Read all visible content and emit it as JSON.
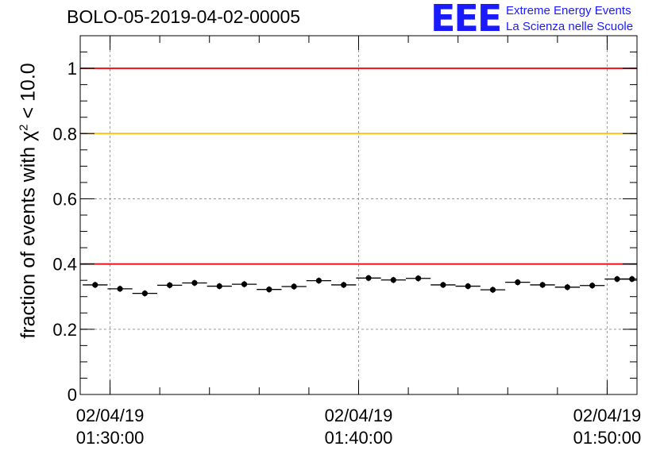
{
  "header": {
    "title": "BOLO-05-2019-04-02-00005",
    "logo_mark": "EEE",
    "logo_line1": "Extreme Energy Events",
    "logo_line2": "La Scienza nelle Scuole"
  },
  "chart_data": {
    "type": "scatter",
    "title": "BOLO-05-2019-04-02-00005",
    "xlabel": "",
    "ylabel_prefix": "fraction of events with ",
    "ylabel_symbol": "χ",
    "ylabel_sup": "2",
    "ylabel_suffix": " < 10.0",
    "x_range_minutes": [
      28.8,
      51.2
    ],
    "ylim": [
      0,
      1.1
    ],
    "yticks": [
      0,
      0.2,
      0.4,
      0.6,
      0.8,
      1
    ],
    "ytick_labels": [
      "0",
      "0.2",
      "0.4",
      "0.6",
      "0.8",
      "1"
    ],
    "xticks": [
      {
        "minute": 30,
        "date": "02/04/19",
        "time": "01:30:00"
      },
      {
        "minute": 40,
        "date": "02/04/19",
        "time": "01:40:00"
      },
      {
        "minute": 50,
        "date": "02/04/19",
        "time": "01:50:00"
      }
    ],
    "bin_width_minutes": 1,
    "series": [
      {
        "x": [
          29.4,
          30.4,
          31.4,
          32.4,
          33.4,
          34.4,
          35.4,
          36.4,
          37.4,
          38.4,
          39.4,
          40.4,
          41.4,
          42.4,
          43.4,
          44.4,
          45.4,
          46.4,
          47.4,
          48.4,
          49.4,
          50.4,
          51.0
        ],
        "y": [
          0.336,
          0.324,
          0.31,
          0.335,
          0.342,
          0.332,
          0.338,
          0.322,
          0.331,
          0.349,
          0.336,
          0.357,
          0.351,
          0.356,
          0.336,
          0.332,
          0.321,
          0.344,
          0.336,
          0.329,
          0.334,
          0.354,
          0.354
        ]
      }
    ],
    "reference_lines": [
      {
        "y": 1.0,
        "color": "#e8141c"
      },
      {
        "y": 0.8,
        "color": "#ffc20e"
      },
      {
        "y": 0.4,
        "color": "#e8141c"
      }
    ],
    "grid": true,
    "marker_color": "#000000"
  }
}
